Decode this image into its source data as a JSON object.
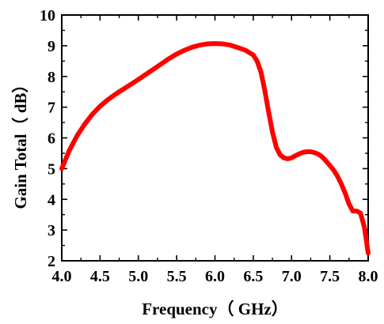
{
  "chart_data": {
    "type": "line",
    "title": "",
    "xlabel": "Frequency（ GHz）",
    "ylabel": "Gain Total（ dB）",
    "xlim": [
      4.0,
      8.0
    ],
    "ylim": [
      2,
      10
    ],
    "x_ticks": [
      "4.0",
      "4.5",
      "5.0",
      "5.5",
      "6.0",
      "6.5",
      "7.0",
      "7.5",
      "8.0"
    ],
    "y_ticks": [
      "2",
      "3",
      "4",
      "5",
      "6",
      "7",
      "8",
      "9",
      "10"
    ],
    "grid": false,
    "legend": "none",
    "series": [
      {
        "color": "#ff0000",
        "x": [
          4.0,
          4.1,
          4.2,
          4.3,
          4.4,
          4.5,
          4.6,
          4.7,
          4.8,
          4.9,
          5.0,
          5.1,
          5.2,
          5.3,
          5.4,
          5.5,
          5.6,
          5.7,
          5.8,
          5.9,
          6.0,
          6.1,
          6.2,
          6.3,
          6.4,
          6.5,
          6.55,
          6.6,
          6.65,
          6.7,
          6.75,
          6.8,
          6.85,
          6.9,
          6.95,
          7.0,
          7.05,
          7.1,
          7.15,
          7.2,
          7.25,
          7.3,
          7.35,
          7.4,
          7.45,
          7.5,
          7.55,
          7.6,
          7.65,
          7.7,
          7.75,
          7.8,
          7.85,
          7.9,
          7.95,
          8.0
        ],
        "y": [
          5.0,
          5.6,
          6.07,
          6.45,
          6.77,
          7.03,
          7.24,
          7.42,
          7.58,
          7.74,
          7.9,
          8.07,
          8.24,
          8.41,
          8.58,
          8.73,
          8.85,
          8.95,
          9.02,
          9.06,
          9.07,
          9.06,
          9.02,
          8.94,
          8.85,
          8.7,
          8.5,
          8.15,
          7.55,
          6.85,
          6.2,
          5.7,
          5.45,
          5.35,
          5.32,
          5.35,
          5.42,
          5.48,
          5.53,
          5.55,
          5.55,
          5.52,
          5.47,
          5.38,
          5.25,
          5.1,
          4.95,
          4.75,
          4.5,
          4.2,
          3.85,
          3.62,
          3.62,
          3.55,
          3.1,
          2.25
        ]
      }
    ]
  }
}
